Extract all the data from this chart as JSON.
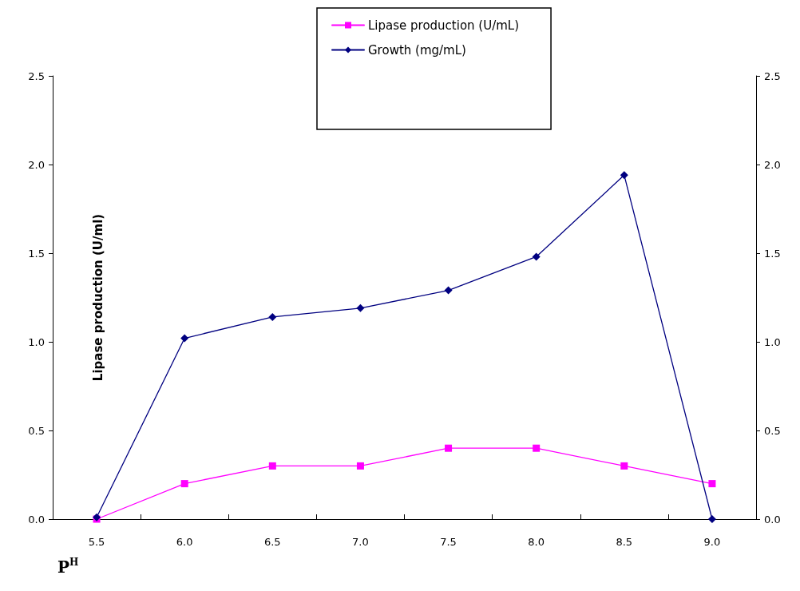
{
  "chart_data": {
    "type": "line",
    "xlabel": "P$^{H}$",
    "ylabel": "Lipase production (U/ml)",
    "categories": [
      "5.5",
      "6.0",
      "6.5",
      "7.0",
      "7.5",
      "8.0",
      "8.5",
      "9.0"
    ],
    "series": [
      {
        "name": "Lipase production (U/mL)",
        "color": "#ff00ff",
        "marker": "square",
        "values": [
          0.0,
          0.2,
          0.3,
          0.3,
          0.4,
          0.4,
          0.3,
          0.2
        ]
      },
      {
        "name": "Growth (mg/mL)",
        "color": "#000080",
        "marker": "diamond",
        "values": [
          0.01,
          1.02,
          1.14,
          1.19,
          1.29,
          1.48,
          1.94,
          0.0
        ]
      }
    ],
    "ylim": [
      0,
      2.5
    ],
    "yticks": [
      {
        "value": 0,
        "label": "0.0"
      },
      {
        "value": 0.5,
        "label": "0.5"
      },
      {
        "value": 1,
        "label": "1.0"
      },
      {
        "value": 1.5,
        "label": "1.5"
      },
      {
        "value": 2,
        "label": "2.0"
      },
      {
        "value": 2.5,
        "label": "2.5"
      }
    ],
    "y2lim": [
      0,
      2.5
    ],
    "y2ticks": [
      {
        "value": 0,
        "label": "0.0"
      },
      {
        "value": 0.5,
        "label": "0.5"
      },
      {
        "value": 1,
        "label": "1.0"
      },
      {
        "value": 1.5,
        "label": "1.5"
      },
      {
        "value": 2,
        "label": "2.0"
      },
      {
        "value": 2.5,
        "label": "2.5"
      }
    ],
    "grid": false,
    "legend": "top",
    "line_style": "solid"
  }
}
